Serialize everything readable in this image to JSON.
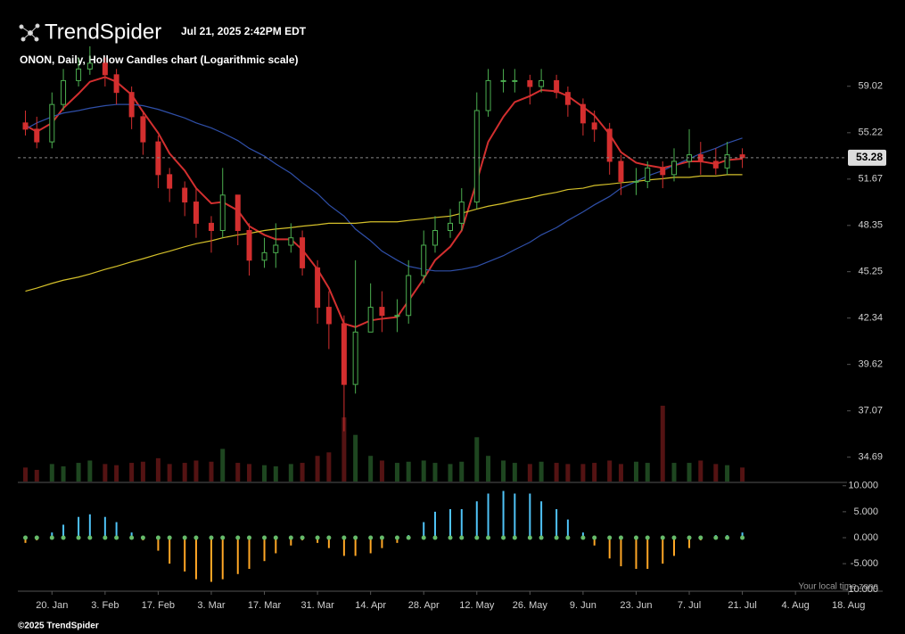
{
  "header": {
    "brand": "TrendSpider",
    "timestamp": "Jul 21, 2025 2:42PM EDT",
    "timezone_note": "Your local time zone",
    "footer": "©2025 TrendSpider"
  },
  "chart_data": {
    "type": "candlestick",
    "title": "ONON, Daily, Hollow Candles chart (Logarithmic scale)",
    "log_scale": true,
    "x": [
      "13. Jan",
      "16. Jan",
      "20. Jan",
      "23. Jan",
      "27. Jan",
      "30. Jan",
      "3. Feb",
      "6. Feb",
      "10. Feb",
      "13. Feb",
      "17. Feb",
      "20. Feb",
      "24. Feb",
      "27. Feb",
      "3. Mar",
      "6. Mar",
      "10. Mar",
      "13. Mar",
      "17. Mar",
      "20. Mar",
      "24. Mar",
      "27. Mar",
      "31. Mar",
      "3. Apr",
      "7. Apr",
      "10. Apr",
      "14. Apr",
      "17. Apr",
      "21. Apr",
      "24. Apr",
      "28. Apr",
      "1. May",
      "5. May",
      "8. May",
      "12. May",
      "15. May",
      "19. May",
      "22. May",
      "26. May",
      "29. May",
      "2. Jun",
      "5. Jun",
      "9. Jun",
      "12. Jun",
      "16. Jun",
      "19. Jun",
      "23. Jun",
      "26. Jun",
      "30. Jun",
      "3. Jul",
      "7. Jul",
      "10. Jul",
      "14. Jul",
      "17. Jul",
      "21. Jul"
    ],
    "open": [
      56.0,
      55.5,
      54.5,
      57.5,
      59.5,
      60.5,
      61.0,
      60.0,
      58.5,
      56.5,
      54.5,
      52.0,
      51.0,
      50.0,
      48.5,
      48.0,
      50.5,
      48.0,
      46.0,
      46.5,
      47.0,
      47.5,
      45.5,
      43.0,
      42.0,
      38.5,
      41.5,
      43.0,
      42.5,
      42.5,
      45.0,
      47.0,
      48.0,
      48.5,
      50.0,
      57.0,
      59.5,
      59.5,
      59.5,
      59.0,
      59.5,
      58.5,
      57.5,
      56.0,
      55.5,
      53.0,
      51.5,
      51.5,
      52.5,
      52.0,
      53.0,
      53.5,
      53.0,
      52.5,
      53.5
    ],
    "high": [
      57.0,
      56.5,
      58.5,
      60.5,
      61.5,
      62.5,
      61.5,
      60.5,
      59.0,
      57.0,
      55.0,
      52.5,
      51.5,
      51.0,
      49.0,
      52.5,
      50.5,
      48.5,
      47.5,
      48.5,
      48.5,
      48.0,
      46.0,
      44.0,
      42.5,
      46.0,
      44.5,
      44.0,
      43.5,
      46.0,
      48.0,
      49.0,
      49.5,
      51.0,
      58.5,
      60.5,
      60.5,
      60.5,
      60.0,
      60.5,
      60.0,
      59.0,
      58.0,
      57.0,
      56.0,
      53.5,
      52.5,
      53.0,
      53.0,
      54.0,
      55.5,
      54.5,
      54.0,
      54.5,
      54.0
    ],
    "low": [
      55.0,
      54.0,
      54.0,
      57.0,
      59.0,
      60.0,
      59.0,
      57.5,
      55.5,
      53.5,
      51.0,
      50.0,
      49.0,
      47.5,
      46.5,
      47.5,
      47.0,
      45.0,
      45.5,
      45.5,
      46.5,
      45.0,
      42.0,
      40.5,
      36.0,
      38.0,
      41.5,
      41.5,
      41.5,
      42.0,
      44.5,
      46.5,
      47.5,
      48.0,
      49.5,
      56.5,
      58.5,
      58.5,
      57.5,
      58.5,
      58.0,
      56.5,
      55.0,
      54.5,
      52.0,
      50.5,
      50.5,
      51.0,
      51.0,
      51.5,
      52.5,
      52.0,
      52.0,
      52.0,
      52.5
    ],
    "close": [
      55.5,
      54.5,
      57.5,
      59.5,
      60.5,
      61.0,
      60.0,
      58.5,
      56.5,
      54.5,
      52.0,
      51.0,
      50.0,
      48.5,
      48.0,
      50.5,
      48.0,
      46.0,
      46.5,
      47.0,
      47.5,
      45.5,
      43.0,
      42.0,
      38.5,
      41.5,
      43.0,
      42.5,
      42.5,
      45.0,
      47.0,
      48.0,
      48.5,
      50.0,
      57.0,
      59.5,
      59.5,
      59.5,
      59.0,
      59.5,
      58.5,
      57.5,
      56.0,
      55.5,
      53.0,
      51.5,
      51.5,
      52.5,
      52.0,
      53.0,
      53.5,
      53.0,
      52.5,
      53.5,
      53.28
    ],
    "up_color": "#4caf50",
    "down_color": "#d32f2f",
    "volume": [
      1.2,
      1.0,
      1.5,
      1.3,
      1.6,
      1.8,
      1.5,
      1.4,
      1.6,
      1.7,
      2.0,
      1.5,
      1.6,
      1.8,
      1.7,
      2.8,
      1.6,
      1.5,
      1.4,
      1.3,
      1.5,
      1.6,
      2.2,
      2.5,
      5.5,
      4.0,
      2.2,
      1.8,
      1.6,
      1.7,
      1.8,
      1.6,
      1.5,
      1.7,
      3.8,
      2.2,
      1.8,
      1.6,
      1.5,
      1.7,
      1.6,
      1.5,
      1.5,
      1.6,
      1.8,
      1.5,
      1.7,
      1.6,
      6.5,
      1.6,
      1.6,
      1.8,
      1.5,
      1.4,
      1.2
    ],
    "moving_averages": [
      {
        "color": "#d32f2f",
        "values": [
          55.8,
          55.3,
          56.0,
          57.2,
          58.4,
          59.4,
          59.8,
          59.4,
          58.3,
          56.9,
          55.2,
          53.6,
          52.3,
          51.0,
          49.9,
          50.0,
          49.4,
          48.3,
          47.7,
          47.4,
          47.4,
          46.7,
          45.4,
          44.2,
          42.0,
          41.8,
          42.2,
          42.3,
          42.4,
          43.4,
          44.8,
          46.0,
          46.9,
          48.0,
          51.5,
          54.5,
          56.5,
          57.7,
          58.2,
          58.7,
          58.6,
          58.2,
          57.3,
          56.6,
          55.1,
          53.7,
          52.9,
          52.7,
          52.5,
          52.7,
          53.0,
          53.0,
          52.8,
          53.1,
          53.2
        ]
      },
      {
        "color": "#2f4fa8",
        "values": [
          55.5,
          56.0,
          56.5,
          56.8,
          57.0,
          57.2,
          57.4,
          57.5,
          57.5,
          57.4,
          57.1,
          56.8,
          56.4,
          56.0,
          55.6,
          55.2,
          54.6,
          54.0,
          53.4,
          52.8,
          52.1,
          51.4,
          50.6,
          49.8,
          49.0,
          48.1,
          47.3,
          46.6,
          46.0,
          45.6,
          45.4,
          45.3,
          45.3,
          45.4,
          45.6,
          45.9,
          46.3,
          46.7,
          47.2,
          47.7,
          48.2,
          48.7,
          49.3,
          49.8,
          50.4,
          51.0,
          51.5,
          51.9,
          52.3,
          52.7,
          53.2,
          53.6,
          54.0,
          54.4,
          54.8
        ]
      },
      {
        "color": "#d4c02a",
        "values": [
          44.0,
          44.2,
          44.5,
          44.7,
          44.9,
          45.1,
          45.4,
          45.6,
          45.9,
          46.1,
          46.4,
          46.6,
          46.9,
          47.1,
          47.3,
          47.5,
          47.7,
          47.8,
          48.0,
          48.1,
          48.2,
          48.3,
          48.4,
          48.5,
          48.5,
          48.5,
          48.6,
          48.6,
          48.6,
          48.7,
          48.8,
          48.9,
          49.0,
          49.2,
          49.5,
          49.7,
          49.9,
          50.1,
          50.3,
          50.5,
          50.7,
          50.9,
          51.0,
          51.2,
          51.3,
          51.4,
          51.5,
          51.6,
          51.7,
          51.8,
          51.8,
          51.9,
          51.9,
          52.0,
          52.0
        ]
      }
    ],
    "xlim": [
      "11. Jan",
      "27. Aug"
    ],
    "xticks": [
      "20. Jan",
      "3. Feb",
      "17. Feb",
      "3. Mar",
      "17. Mar",
      "31. Mar",
      "14. Apr",
      "28. Apr",
      "12. May",
      "26. May",
      "9. Jun",
      "23. Jun",
      "7. Jul",
      "21. Jul",
      "4. Aug",
      "18. Aug"
    ],
    "ylim": [
      33.5,
      65.1
    ],
    "yticks": [
      59.02,
      55.22,
      51.67,
      48.35,
      45.25,
      42.34,
      39.62,
      37.07,
      34.69
    ],
    "oscillator": {
      "values": [
        -1,
        -0.5,
        1,
        2.5,
        4,
        4.5,
        4,
        3,
        1,
        -0.5,
        -2.5,
        -5,
        -6.5,
        -8,
        -8.5,
        -8,
        -7,
        -6,
        -4.5,
        -3,
        -1.5,
        -0.5,
        -1,
        -2,
        -3.5,
        -3.5,
        -3,
        -2,
        -1,
        0.5,
        3,
        5,
        5.5,
        5.5,
        7,
        8.5,
        9,
        8.5,
        8.5,
        7,
        5.5,
        3.5,
        1,
        -1.5,
        -4,
        -5.5,
        -6,
        -6,
        -5,
        -3.5,
        -2,
        -0.5,
        0.5,
        0.5,
        1
      ],
      "pos_color": "#4fc3f7",
      "neg_color": "#ffa726",
      "ylim": [
        -10.3,
        10.3
      ],
      "yticks": [
        {
          "value": 10,
          "label": "10.000"
        },
        {
          "value": 5,
          "label": "5.000"
        },
        {
          "value": 0,
          "label": "0.000"
        },
        {
          "value": -5,
          "label": "-5.000"
        },
        {
          "value": -10,
          "label": "-10.000"
        }
      ]
    }
  }
}
